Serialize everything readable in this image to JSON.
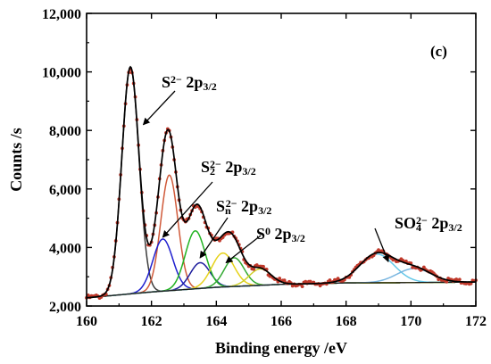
{
  "chart_data": {
    "type": "line",
    "title": "",
    "panel_label": "(c)",
    "xlabel": "Binding energy /eV",
    "ylabel": "Counts /s",
    "xlim": [
      160,
      172
    ],
    "ylim": [
      2000,
      12000
    ],
    "x_ticks": [
      160,
      162,
      164,
      166,
      168,
      170,
      172
    ],
    "x_tick_labels": [
      "160",
      "162",
      "164",
      "166",
      "168",
      "170",
      "172"
    ],
    "y_ticks": [
      2000,
      4000,
      6000,
      8000,
      10000,
      12000
    ],
    "y_tick_labels": [
      "2,000",
      "4,000",
      "6,000",
      "8,000",
      "10,000",
      "12,000"
    ],
    "grid": false,
    "legend": "none",
    "baseline": {
      "x": [
        160,
        162,
        164,
        166,
        168,
        170,
        172
      ],
      "y": [
        2280,
        2480,
        2640,
        2740,
        2790,
        2800,
        2820
      ],
      "color": "#1a1a1a"
    },
    "peaks": [
      {
        "id": "s2-2p32",
        "center": 161.35,
        "height": 7750,
        "fwhm": 0.62,
        "color": "#3d3d3d"
      },
      {
        "id": "s2-2p12",
        "center": 162.55,
        "height": 3950,
        "fwhm": 0.62,
        "color": "#d05a3a"
      },
      {
        "id": "s22-2p32",
        "center": 162.35,
        "height": 1780,
        "fwhm": 0.72,
        "color": "#1f1fcf"
      },
      {
        "id": "s22-2p12",
        "center": 163.5,
        "height": 880,
        "fwhm": 0.72,
        "color": "#1c1c9c"
      },
      {
        "id": "sn2-2p32",
        "center": 163.35,
        "height": 1980,
        "fwhm": 0.72,
        "color": "#22b322"
      },
      {
        "id": "sn2-2p12",
        "center": 164.55,
        "height": 980,
        "fwhm": 0.72,
        "color": "#33aa33"
      },
      {
        "id": "s0-2p32",
        "center": 164.2,
        "height": 1160,
        "fwhm": 0.8,
        "color": "#e6d21a"
      },
      {
        "id": "s0-2p12",
        "center": 165.35,
        "height": 560,
        "fwhm": 0.8,
        "color": "#cfcf2a"
      },
      {
        "id": "so4-2p32",
        "center": 168.95,
        "height": 980,
        "fwhm": 1.25,
        "color": "#66c8e8"
      },
      {
        "id": "so4-2p12",
        "center": 170.1,
        "height": 480,
        "fwhm": 1.25,
        "color": "#7ab6e0"
      }
    ],
    "envelope": {
      "color": "#000000"
    },
    "data_points": {
      "color": "#c0392b",
      "x_start": 160,
      "x_end": 172,
      "step": 0.05
    },
    "annotations": [
      {
        "id": "s2",
        "label": "S",
        "sup": "2−",
        "main2": " 2p",
        "sub2": "3/2",
        "arrow_to": [
          161.75,
          8200
        ]
      },
      {
        "id": "s22",
        "label": "S",
        "sub": "2",
        "sup": "2−",
        "main2": " 2p",
        "sub2": "3/2",
        "arrow_to": [
          162.35,
          4350
        ]
      },
      {
        "id": "sn2",
        "label": "S",
        "sub": "n",
        "sup": "2−",
        "main2": " 2p",
        "sub2": "3/2",
        "arrow_to": [
          163.5,
          3650
        ]
      },
      {
        "id": "s0",
        "label": "S",
        "sup": "0",
        "main2": " 2p",
        "sub2": "3/2",
        "arrow_to": [
          164.3,
          3480
        ]
      },
      {
        "id": "so4",
        "label": "SO",
        "sub": "4",
        "sup": "2−",
        "main2": " 2p",
        "sub2": "3/2",
        "arrow_to": [
          169.3,
          3520
        ]
      }
    ]
  }
}
